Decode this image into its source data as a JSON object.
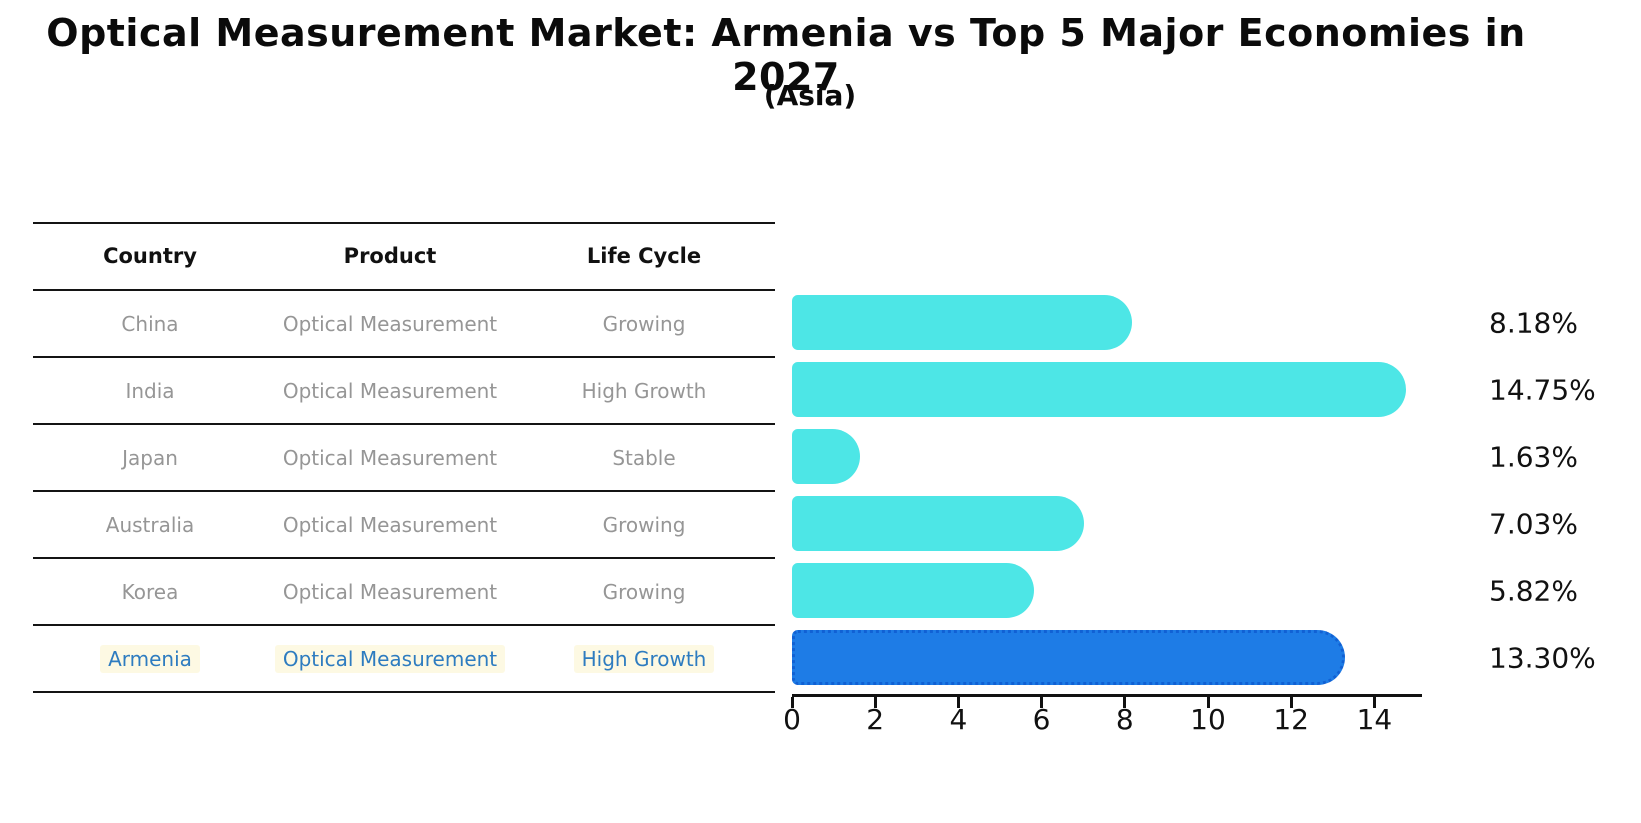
{
  "chart_data": {
    "type": "bar",
    "orientation": "horizontal",
    "title": "Optical Measurement Market: Armenia vs Top 5 Major Economies in 2027",
    "subtitle": "(Asia)",
    "categories": [
      "China",
      "India",
      "Japan",
      "Australia",
      "Korea",
      "Armenia"
    ],
    "values": [
      8.18,
      14.75,
      1.63,
      7.03,
      5.82,
      13.3
    ],
    "value_labels": [
      "8.18%",
      "14.75%",
      "1.63%",
      "7.03%",
      "5.82%",
      "13.30%"
    ],
    "xticks": [
      0,
      2,
      4,
      6,
      8,
      10,
      12,
      14
    ],
    "xlim": [
      0,
      15.1
    ],
    "grid": false,
    "legend": false,
    "highlight_index": 5,
    "bar_color": "#4DE6E6",
    "highlight_bar_color": "#1E7CE6",
    "highlight_border_color": "#1161D4",
    "highlight_border_style": "dotted"
  },
  "table": {
    "headers": {
      "country": "Country",
      "product": "Product",
      "life_cycle": "Life Cycle"
    },
    "rows": [
      {
        "country": "China",
        "product": "Optical Measurement",
        "life_cycle": "Growing",
        "highlight": false
      },
      {
        "country": "India",
        "product": "Optical Measurement",
        "life_cycle": "High Growth",
        "highlight": false
      },
      {
        "country": "Japan",
        "product": "Optical Measurement",
        "life_cycle": "Stable",
        "highlight": false
      },
      {
        "country": "Australia",
        "product": "Optical Measurement",
        "life_cycle": "Growing",
        "highlight": false
      },
      {
        "country": "Korea",
        "product": "Optical Measurement",
        "life_cycle": "Growing",
        "highlight": false
      },
      {
        "country": "Armenia",
        "product": "Optical Measurement",
        "life_cycle": "High Growth",
        "highlight": true
      }
    ]
  },
  "colors": {
    "text": "#111111",
    "muted_text": "#969696",
    "highlight_text": "#2E7CC0",
    "highlight_text_bg": "#FDF9E3",
    "axis": "#111111",
    "table_line": "#141414"
  }
}
